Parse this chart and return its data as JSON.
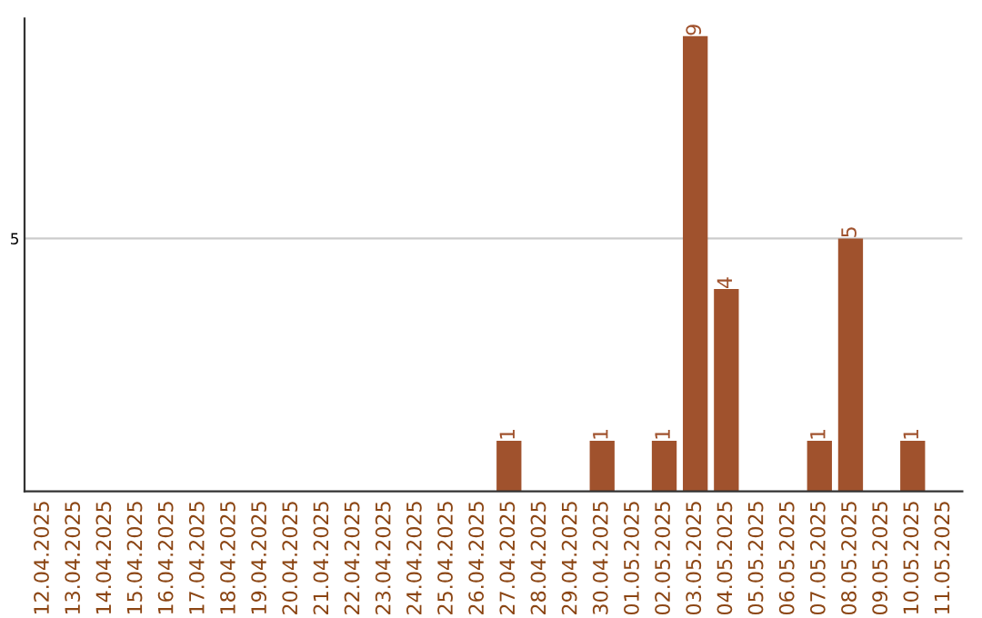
{
  "chart_data": {
    "type": "bar",
    "categories": [
      "12.04.2025",
      "13.04.2025",
      "14.04.2025",
      "15.04.2025",
      "16.04.2025",
      "17.04.2025",
      "18.04.2025",
      "19.04.2025",
      "20.04.2025",
      "21.04.2025",
      "22.04.2025",
      "23.04.2025",
      "24.04.2025",
      "25.04.2025",
      "26.04.2025",
      "27.04.2025",
      "28.04.2025",
      "29.04.2025",
      "30.04.2025",
      "01.05.2025",
      "02.05.2025",
      "03.05.2025",
      "04.05.2025",
      "05.05.2025",
      "06.05.2025",
      "07.05.2025",
      "08.05.2025",
      "09.05.2025",
      "10.05.2025",
      "11.05.2025"
    ],
    "values": [
      null,
      null,
      null,
      null,
      null,
      null,
      null,
      null,
      null,
      null,
      null,
      null,
      null,
      null,
      null,
      1,
      null,
      null,
      1,
      null,
      1,
      9,
      4,
      null,
      null,
      1,
      5,
      null,
      1,
      null
    ],
    "color": "#a0522d",
    "ylim": [
      0,
      9.35
    ],
    "yticks": [
      5
    ],
    "grid": "y",
    "data_labels": true
  }
}
